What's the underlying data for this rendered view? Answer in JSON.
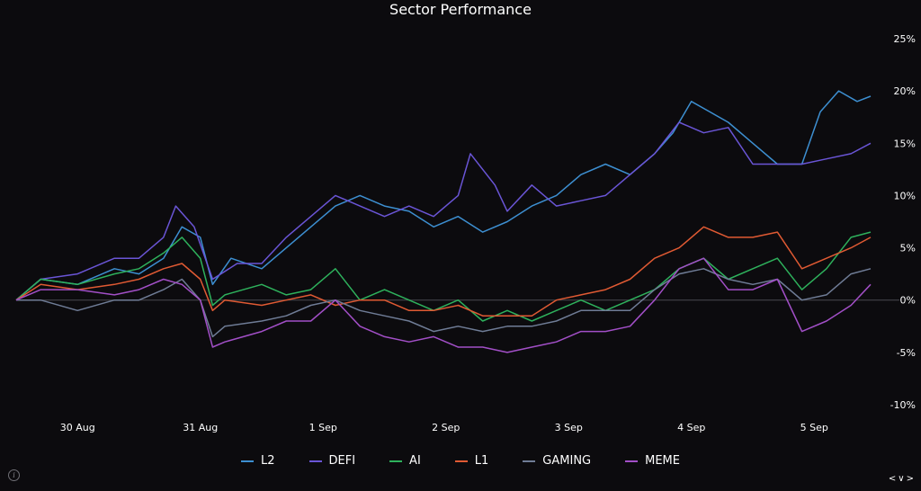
{
  "chart_data": {
    "type": "line",
    "title": "Sector Performance",
    "y_unit": "%",
    "ylim": [
      -10,
      25
    ],
    "y_ticks": [
      25,
      20,
      15,
      10,
      5,
      0,
      -5,
      -10
    ],
    "y_tick_labels": [
      "25%",
      "20%",
      "15%",
      "10%",
      "5%",
      "0%",
      "-5%",
      "-10%"
    ],
    "x_ticks": [
      {
        "x": 0.5,
        "label": "30 Aug"
      },
      {
        "x": 1.5,
        "label": "31 Aug"
      },
      {
        "x": 2.5,
        "label": "1 Sep"
      },
      {
        "x": 3.5,
        "label": "2 Sep"
      },
      {
        "x": 4.5,
        "label": "3 Sep"
      },
      {
        "x": 5.5,
        "label": "4 Sep"
      },
      {
        "x": 6.5,
        "label": "5 Sep"
      }
    ],
    "xlim": [
      0,
      6.96
    ],
    "zero_line": true,
    "legend_position": "bottom",
    "series": [
      {
        "name": "L2",
        "color": "#3d8fd1",
        "x": [
          0,
          0.2,
          0.5,
          0.8,
          1.0,
          1.2,
          1.35,
          1.5,
          1.6,
          1.75,
          2.0,
          2.2,
          2.4,
          2.6,
          2.8,
          3.0,
          3.2,
          3.4,
          3.6,
          3.8,
          4.0,
          4.2,
          4.4,
          4.6,
          4.8,
          5.0,
          5.2,
          5.35,
          5.5,
          5.65,
          5.8,
          6.0,
          6.2,
          6.4,
          6.55,
          6.7,
          6.85,
          6.96
        ],
        "y": [
          0,
          2,
          1.5,
          3,
          2.5,
          4,
          7,
          6,
          1.5,
          4,
          3,
          5,
          7,
          9,
          10,
          9,
          8.5,
          7,
          8,
          6.5,
          7.5,
          9,
          10,
          12,
          13,
          12,
          14,
          16,
          19,
          18,
          17,
          15,
          13,
          13,
          18,
          20,
          19,
          19.5
        ]
      },
      {
        "name": "DEFI",
        "color": "#6a55d6",
        "x": [
          0,
          0.2,
          0.5,
          0.8,
          1.0,
          1.2,
          1.3,
          1.45,
          1.6,
          1.8,
          2.0,
          2.2,
          2.4,
          2.6,
          2.8,
          3.0,
          3.2,
          3.4,
          3.6,
          3.7,
          3.9,
          4.0,
          4.2,
          4.4,
          4.6,
          4.8,
          5.0,
          5.2,
          5.4,
          5.6,
          5.8,
          6.0,
          6.2,
          6.4,
          6.6,
          6.8,
          6.96
        ],
        "y": [
          0,
          2,
          2.5,
          4,
          4,
          6,
          9,
          7,
          2,
          3.5,
          3.5,
          6,
          8,
          10,
          9,
          8,
          9,
          8,
          10,
          14,
          11,
          8.5,
          11,
          9,
          9.5,
          10,
          12,
          14,
          17,
          16,
          16.5,
          13,
          13,
          13,
          13.5,
          14,
          15
        ]
      },
      {
        "name": "AI",
        "color": "#2eb15c",
        "x": [
          0,
          0.2,
          0.5,
          0.8,
          1.0,
          1.2,
          1.35,
          1.5,
          1.6,
          1.7,
          2.0,
          2.2,
          2.4,
          2.6,
          2.8,
          3.0,
          3.2,
          3.4,
          3.6,
          3.8,
          4.0,
          4.2,
          4.4,
          4.6,
          4.8,
          5.0,
          5.2,
          5.4,
          5.6,
          5.8,
          6.0,
          6.2,
          6.4,
          6.6,
          6.8,
          6.96
        ],
        "y": [
          0,
          2,
          1.5,
          2.5,
          3,
          4.5,
          6,
          4,
          -0.5,
          0.5,
          1.5,
          0.5,
          1,
          3,
          0,
          1,
          0,
          -1,
          0,
          -2,
          -1,
          -2,
          -1,
          0,
          -1,
          0,
          1,
          3,
          4,
          2,
          3,
          4,
          1,
          3,
          6,
          6.5
        ]
      },
      {
        "name": "L1",
        "color": "#e05a33",
        "x": [
          0,
          0.2,
          0.5,
          0.8,
          1.0,
          1.2,
          1.35,
          1.5,
          1.6,
          1.7,
          2.0,
          2.2,
          2.4,
          2.6,
          2.8,
          3.0,
          3.2,
          3.4,
          3.6,
          3.8,
          4.0,
          4.2,
          4.4,
          4.6,
          4.8,
          5.0,
          5.2,
          5.4,
          5.6,
          5.8,
          6.0,
          6.2,
          6.4,
          6.6,
          6.8,
          6.96
        ],
        "y": [
          0,
          1.5,
          1,
          1.5,
          2,
          3,
          3.5,
          2,
          -1,
          0,
          -0.5,
          0,
          0.5,
          -0.5,
          0,
          0,
          -1,
          -1,
          -0.5,
          -1.5,
          -1.5,
          -1.5,
          0,
          0.5,
          1,
          2,
          4,
          5,
          7,
          6,
          6,
          6.5,
          3,
          4,
          5,
          6
        ]
      },
      {
        "name": "GAMING",
        "color": "#6f7c96",
        "x": [
          0,
          0.2,
          0.5,
          0.8,
          1.0,
          1.2,
          1.35,
          1.5,
          1.6,
          1.7,
          2.0,
          2.2,
          2.4,
          2.6,
          2.8,
          3.0,
          3.2,
          3.4,
          3.6,
          3.8,
          4.0,
          4.2,
          4.4,
          4.6,
          4.8,
          5.0,
          5.2,
          5.4,
          5.6,
          5.8,
          6.0,
          6.2,
          6.4,
          6.6,
          6.8,
          6.96
        ],
        "y": [
          0,
          0,
          -1,
          0,
          0,
          1,
          2,
          0,
          -3.5,
          -2.5,
          -2,
          -1.5,
          -0.5,
          0,
          -1,
          -1.5,
          -2,
          -3,
          -2.5,
          -3,
          -2.5,
          -2.5,
          -2,
          -1,
          -1,
          -1,
          1,
          2.5,
          3,
          2,
          1.5,
          2,
          0,
          0.5,
          2.5,
          3
        ]
      },
      {
        "name": "MEME",
        "color": "#a24fc7",
        "x": [
          0,
          0.2,
          0.5,
          0.8,
          1.0,
          1.2,
          1.35,
          1.5,
          1.6,
          1.7,
          2.0,
          2.2,
          2.4,
          2.6,
          2.8,
          3.0,
          3.2,
          3.4,
          3.6,
          3.8,
          4.0,
          4.2,
          4.4,
          4.6,
          4.8,
          5.0,
          5.2,
          5.4,
          5.6,
          5.8,
          6.0,
          6.2,
          6.4,
          6.6,
          6.8,
          6.96
        ],
        "y": [
          0,
          1,
          1,
          0.5,
          1,
          2,
          1.5,
          0,
          -4.5,
          -4,
          -3,
          -2,
          -2,
          0,
          -2.5,
          -3.5,
          -4,
          -3.5,
          -4.5,
          -4.5,
          -5,
          -4.5,
          -4,
          -3,
          -3,
          -2.5,
          0,
          3,
          4,
          1,
          1,
          2,
          -3,
          -2,
          -0.5,
          1.5
        ]
      }
    ]
  }
}
